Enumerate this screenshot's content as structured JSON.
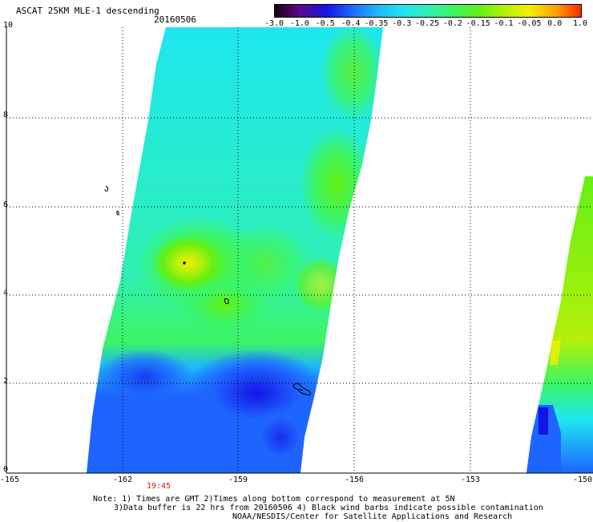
{
  "header": {
    "title": "ASCAT 25KM MLE-1 descending",
    "date": "20160506"
  },
  "colorbar": {
    "labels": [
      "-3.0",
      "-1.0",
      "-0.5",
      "-0.4",
      "-0.35",
      "-0.3",
      "-0.25",
      "-0.2",
      "-0.15",
      "-0.1",
      "-0.05",
      "0.0",
      "1.0"
    ],
    "colors": [
      "#1a0010",
      "#5a0a8a",
      "#1414e6",
      "#1e64ff",
      "#1eb4ff",
      "#1ee6f0",
      "#2ef0b4",
      "#3cf564",
      "#64f014",
      "#b4f00a",
      "#f0f000",
      "#ffa000",
      "#ff2800"
    ]
  },
  "axes": {
    "y_ticks": [
      "10",
      "8",
      "6",
      "4",
      "2",
      "0"
    ],
    "x_ticks": [
      "-165",
      "-162",
      "-159",
      "-156",
      "-153",
      "-150"
    ]
  },
  "time_label": "19:45",
  "notes": {
    "line1": "Note: 1) Times are GMT 2)Times along bottom correspond to measurement at 5N",
    "line2": "3)Data buffer is 22 hrs from 20160506 4) Black wind barbs indicate possible contamination",
    "line3": "NOAA/NESDIS/Center for Satellite Applications and Research"
  }
}
